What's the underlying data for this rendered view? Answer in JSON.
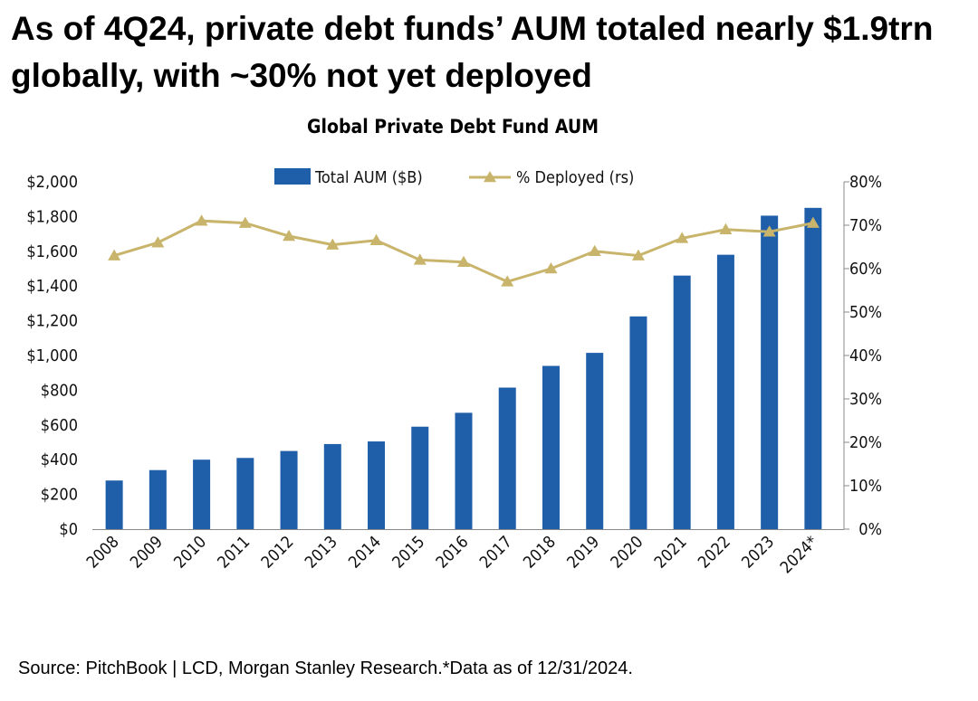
{
  "headline": "As of 4Q24, private debt funds’ AUM totaled nearly $1.9trn globally, with ~30% not yet deployed",
  "source": "Source: PitchBook | LCD, Morgan Stanley Research.*Data as of 12/31/2024.",
  "colors": {
    "bar": "#1f5ea8",
    "line": "#c8b46a"
  },
  "chart_data": {
    "type": "bar+line",
    "title": "Global Private Debt Fund AUM",
    "categories": [
      "2008",
      "2009",
      "2010",
      "2011",
      "2012",
      "2013",
      "2014",
      "2015",
      "2016",
      "2017",
      "2018",
      "2019",
      "2020",
      "2021",
      "2022",
      "2023",
      "2024*"
    ],
    "series": [
      {
        "name": "Total AUM ($B)",
        "type": "bar",
        "axis": "left",
        "values": [
          280,
          340,
          400,
          410,
          450,
          490,
          505,
          590,
          670,
          815,
          940,
          1015,
          1225,
          1460,
          1580,
          1805,
          1850
        ]
      },
      {
        "name": "% Deployed (rs)",
        "type": "line",
        "axis": "right",
        "marker": "triangle",
        "values": [
          63,
          66,
          71,
          70.5,
          67.5,
          65.5,
          66.5,
          62,
          61.5,
          57,
          60,
          64,
          63,
          67,
          69,
          68.5,
          70.5
        ]
      }
    ],
    "left_axis": {
      "ylim": [
        0,
        2000
      ],
      "ticks": [
        0,
        200,
        400,
        600,
        800,
        1000,
        1200,
        1400,
        1600,
        1800,
        2000
      ],
      "tick_labels": [
        "$0",
        "$200",
        "$400",
        "$600",
        "$800",
        "$1,000",
        "$1,200",
        "$1,400",
        "$1,600",
        "$1,800",
        "$2,000"
      ]
    },
    "right_axis": {
      "ylim": [
        0,
        80
      ],
      "ticks": [
        0,
        10,
        20,
        30,
        40,
        50,
        60,
        70,
        80
      ],
      "tick_labels": [
        "0%",
        "10%",
        "20%",
        "30%",
        "40%",
        "50%",
        "60%",
        "70%",
        "80%"
      ]
    },
    "legend": {
      "position": "top-center"
    },
    "grid": false
  }
}
